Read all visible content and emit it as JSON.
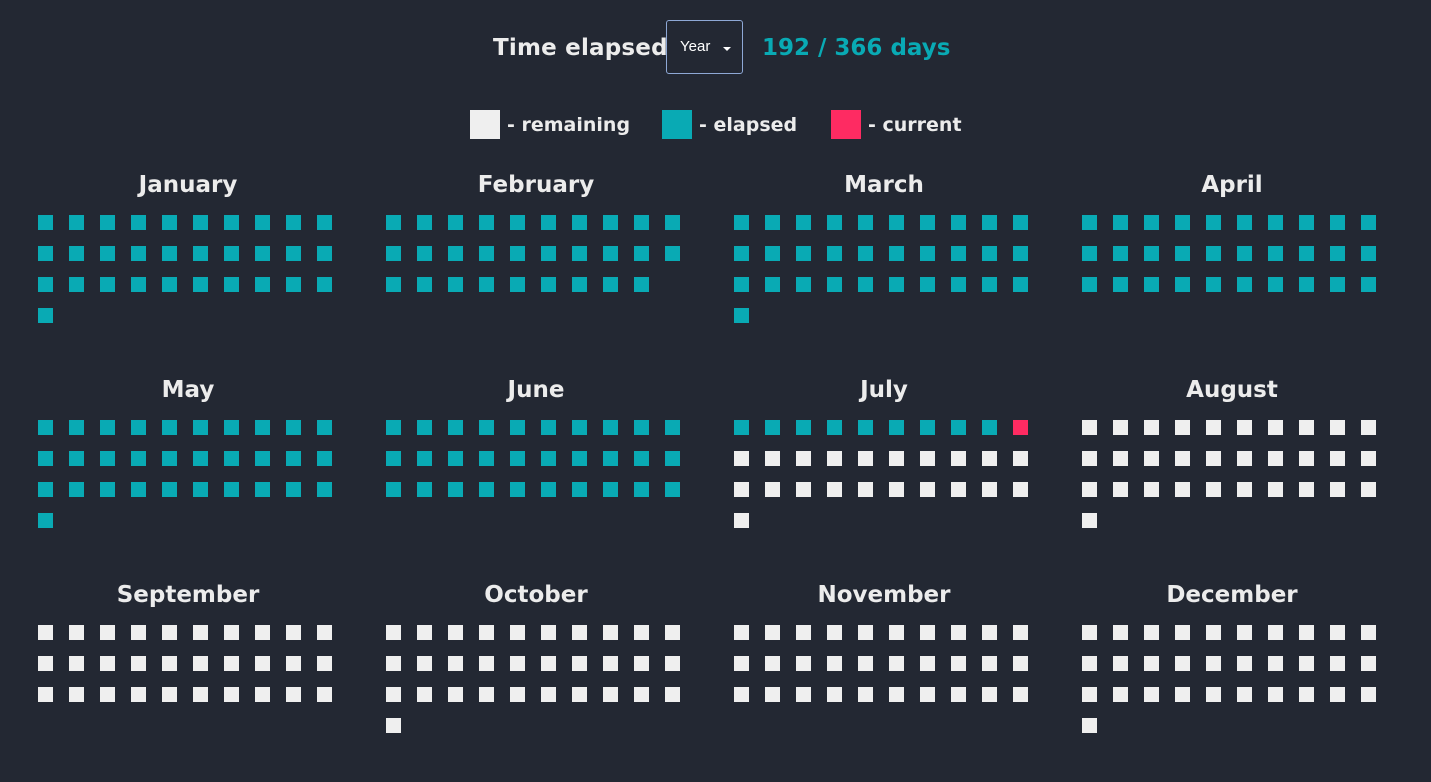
{
  "header": {
    "title": "Time elapsed",
    "period_select": {
      "selected": "Year"
    },
    "counter": "192 / 366 days"
  },
  "legend": [
    {
      "label": "- remaining",
      "status": "remaining",
      "color": "#efefef"
    },
    {
      "label": "- elapsed",
      "status": "elapsed",
      "color": "#09aab4"
    },
    {
      "label": "- current",
      "status": "current",
      "color": "#fe2b62"
    }
  ],
  "colors": {
    "background": "#232833",
    "remaining": "#efefef",
    "elapsed": "#09aab4",
    "current": "#fe2b62",
    "counter_text": "#09aab4"
  },
  "current_day": {
    "month": "July",
    "day": 10
  },
  "months": [
    {
      "name": "January",
      "days": 31
    },
    {
      "name": "February",
      "days": 29
    },
    {
      "name": "March",
      "days": 31
    },
    {
      "name": "April",
      "days": 30
    },
    {
      "name": "May",
      "days": 31
    },
    {
      "name": "June",
      "days": 30
    },
    {
      "name": "July",
      "days": 31
    },
    {
      "name": "August",
      "days": 31
    },
    {
      "name": "September",
      "days": 30
    },
    {
      "name": "October",
      "days": 31
    },
    {
      "name": "November",
      "days": 30
    },
    {
      "name": "December",
      "days": 31
    }
  ]
}
